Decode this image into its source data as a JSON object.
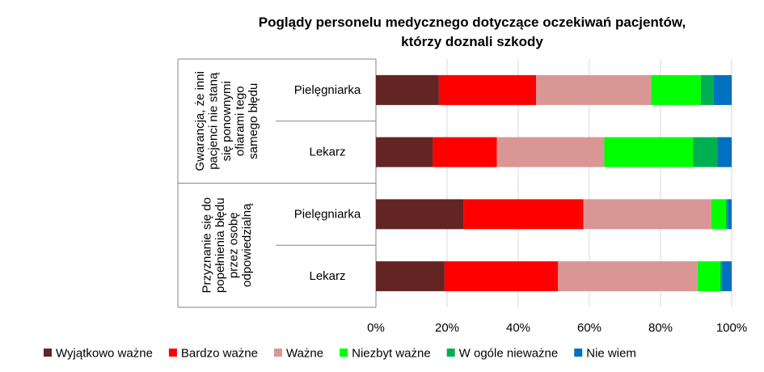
{
  "chart_data": {
    "type": "bar",
    "orientation": "horizontal",
    "stacked": "percent",
    "title": "Poglądy personelu medycznego dotyczące oczekiwań pacjentów,",
    "subtitle": "którzy doznali szkody",
    "groups": [
      {
        "label_lines": [
          "Gwarancja, że inni",
          "pacjenci nie staną",
          "się ponownymi",
          "ofiarami tego",
          "samego błędu"
        ],
        "categories": [
          "Pielęgniarka",
          "Lekarz"
        ]
      },
      {
        "label_lines": [
          "Przyznanie się do",
          "popełnienia błędu",
          "przez osobę",
          "odpowiedzialną"
        ],
        "categories": [
          "Pielęgniarka",
          "Lekarz"
        ]
      }
    ],
    "series": [
      {
        "name": "Wyjątkowo ważne",
        "color": "#632523",
        "values": [
          17.7,
          16.0,
          24.7,
          19.3
        ]
      },
      {
        "name": "Bardzo ważne",
        "color": "#ff0000",
        "values": [
          27.3,
          18.0,
          33.6,
          31.9
        ]
      },
      {
        "name": "Ważne",
        "color": "#d99694",
        "values": [
          32.4,
          30.2,
          36.0,
          39.2
        ]
      },
      {
        "name": "Niezbyt ważne",
        "color": "#00ff00",
        "values": [
          13.9,
          25.0,
          4.1,
          6.4
        ]
      },
      {
        "name": "W ogóle nieważne",
        "color": "#00b050",
        "values": [
          3.7,
          6.8,
          0.5,
          0.5
        ]
      },
      {
        "name": "Nie wiem",
        "color": "#0070c0",
        "values": [
          5.0,
          4.0,
          1.1,
          2.7
        ]
      }
    ],
    "x_ticks": [
      "0%",
      "20%",
      "40%",
      "60%",
      "80%",
      "100%"
    ],
    "xlim": [
      0,
      100
    ],
    "grid": true,
    "legend_position": "bottom"
  }
}
